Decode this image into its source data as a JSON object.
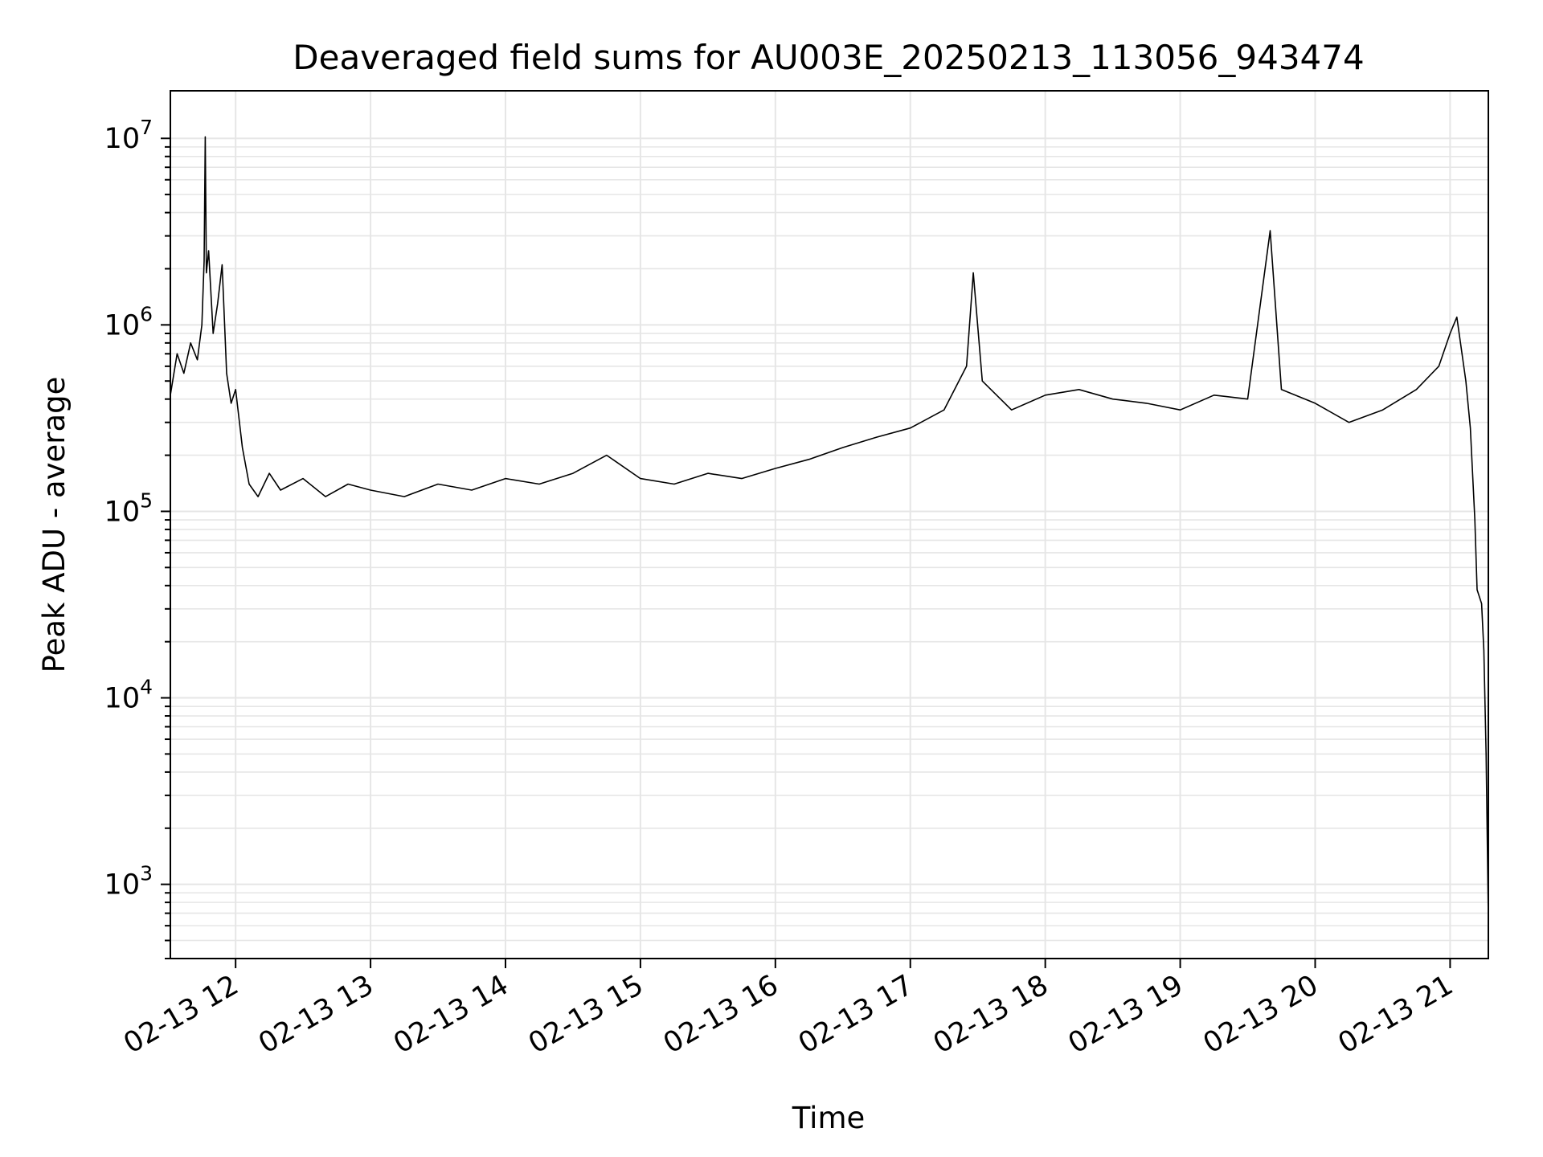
{
  "chart_data": {
    "type": "line",
    "title": "Deaveraged field sums for AU003E_20250213_113056_943474",
    "xlabel": "Time",
    "ylabel": "Peak ADU - average",
    "yscale": "log",
    "ylim": [
      400,
      18000000
    ],
    "xlim": [
      "2025-02-13 11:31:00",
      "2025-02-13 21:17:00"
    ],
    "grid": true,
    "line_color": "#000000",
    "grid_color": "#e6e6e6",
    "x_ticks": [
      {
        "t": "2025-02-13 12:00",
        "label": "02-13 12"
      },
      {
        "t": "2025-02-13 13:00",
        "label": "02-13 13"
      },
      {
        "t": "2025-02-13 14:00",
        "label": "02-13 14"
      },
      {
        "t": "2025-02-13 15:00",
        "label": "02-13 15"
      },
      {
        "t": "2025-02-13 16:00",
        "label": "02-13 16"
      },
      {
        "t": "2025-02-13 17:00",
        "label": "02-13 17"
      },
      {
        "t": "2025-02-13 18:00",
        "label": "02-13 18"
      },
      {
        "t": "2025-02-13 19:00",
        "label": "02-13 19"
      },
      {
        "t": "2025-02-13 20:00",
        "label": "02-13 20"
      },
      {
        "t": "2025-02-13 21:00",
        "label": "02-13 21"
      }
    ],
    "y_ticks": [
      {
        "value": 1000,
        "base": "10",
        "exp": "3"
      },
      {
        "value": 10000,
        "base": "10",
        "exp": "4"
      },
      {
        "value": 100000,
        "base": "10",
        "exp": "5"
      },
      {
        "value": 1000000,
        "base": "10",
        "exp": "6"
      },
      {
        "value": 10000000,
        "base": "10",
        "exp": "7"
      }
    ],
    "series": [
      {
        "points": [
          [
            "2025-02-13 11:31",
            420000
          ],
          [
            "2025-02-13 11:34",
            700000
          ],
          [
            "2025-02-13 11:37",
            550000
          ],
          [
            "2025-02-13 11:40",
            800000
          ],
          [
            "2025-02-13 11:43",
            650000
          ],
          [
            "2025-02-13 11:45",
            1000000
          ],
          [
            "2025-02-13 11:46",
            2200000
          ],
          [
            "2025-02-13 11:46:30",
            10200000
          ],
          [
            "2025-02-13 11:47",
            1900000
          ],
          [
            "2025-02-13 11:48",
            2500000
          ],
          [
            "2025-02-13 11:50",
            900000
          ],
          [
            "2025-02-13 11:52",
            1300000
          ],
          [
            "2025-02-13 11:54",
            2100000
          ],
          [
            "2025-02-13 11:56",
            550000
          ],
          [
            "2025-02-13 11:58",
            380000
          ],
          [
            "2025-02-13 12:00",
            450000
          ],
          [
            "2025-02-13 12:03",
            220000
          ],
          [
            "2025-02-13 12:06",
            140000
          ],
          [
            "2025-02-13 12:10",
            120000
          ],
          [
            "2025-02-13 12:15",
            160000
          ],
          [
            "2025-02-13 12:20",
            130000
          ],
          [
            "2025-02-13 12:30",
            150000
          ],
          [
            "2025-02-13 12:40",
            120000
          ],
          [
            "2025-02-13 12:50",
            140000
          ],
          [
            "2025-02-13 13:00",
            130000
          ],
          [
            "2025-02-13 13:15",
            120000
          ],
          [
            "2025-02-13 13:30",
            140000
          ],
          [
            "2025-02-13 13:45",
            130000
          ],
          [
            "2025-02-13 14:00",
            150000
          ],
          [
            "2025-02-13 14:15",
            140000
          ],
          [
            "2025-02-13 14:30",
            160000
          ],
          [
            "2025-02-13 14:45",
            200000
          ],
          [
            "2025-02-13 15:00",
            150000
          ],
          [
            "2025-02-13 15:15",
            140000
          ],
          [
            "2025-02-13 15:30",
            160000
          ],
          [
            "2025-02-13 15:45",
            150000
          ],
          [
            "2025-02-13 16:00",
            170000
          ],
          [
            "2025-02-13 16:15",
            190000
          ],
          [
            "2025-02-13 16:30",
            220000
          ],
          [
            "2025-02-13 16:45",
            250000
          ],
          [
            "2025-02-13 17:00",
            280000
          ],
          [
            "2025-02-13 17:15",
            350000
          ],
          [
            "2025-02-13 17:25",
            600000
          ],
          [
            "2025-02-13 17:28",
            1900000
          ],
          [
            "2025-02-13 17:32",
            500000
          ],
          [
            "2025-02-13 17:45",
            350000
          ],
          [
            "2025-02-13 18:00",
            420000
          ],
          [
            "2025-02-13 18:15",
            450000
          ],
          [
            "2025-02-13 18:30",
            400000
          ],
          [
            "2025-02-13 18:45",
            380000
          ],
          [
            "2025-02-13 19:00",
            350000
          ],
          [
            "2025-02-13 19:15",
            420000
          ],
          [
            "2025-02-13 19:30",
            400000
          ],
          [
            "2025-02-13 19:40",
            3200000
          ],
          [
            "2025-02-13 19:45",
            450000
          ],
          [
            "2025-02-13 20:00",
            380000
          ],
          [
            "2025-02-13 20:15",
            300000
          ],
          [
            "2025-02-13 20:30",
            350000
          ],
          [
            "2025-02-13 20:45",
            450000
          ],
          [
            "2025-02-13 20:55",
            600000
          ],
          [
            "2025-02-13 21:00",
            900000
          ],
          [
            "2025-02-13 21:03",
            1100000
          ],
          [
            "2025-02-13 21:07",
            500000
          ],
          [
            "2025-02-13 21:09",
            280000
          ],
          [
            "2025-02-13 21:11",
            90000
          ],
          [
            "2025-02-13 21:12",
            38000
          ],
          [
            "2025-02-13 21:14",
            32000
          ],
          [
            "2025-02-13 21:15",
            18000
          ],
          [
            "2025-02-13 21:16",
            5000
          ],
          [
            "2025-02-13 21:17",
            650
          ]
        ]
      }
    ]
  }
}
